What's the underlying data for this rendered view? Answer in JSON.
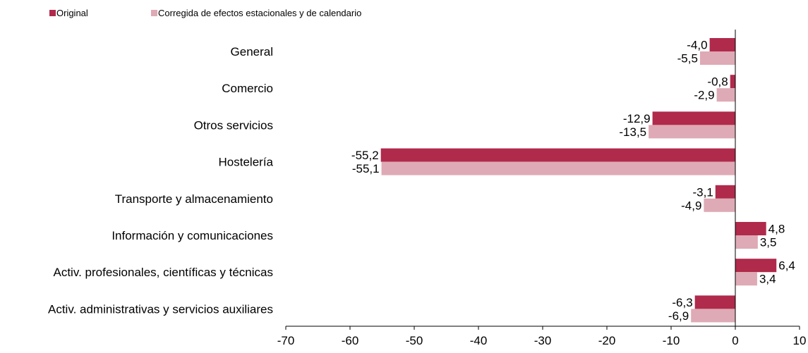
{
  "chart_data": {
    "type": "bar",
    "orientation": "horizontal",
    "categories": [
      "General",
      "Comercio",
      "Otros servicios",
      "Hostelería",
      "Transporte y almacenamiento",
      "Información y comunicaciones",
      "Activ. profesionales, científicas y técnicas",
      "Activ. administrativas y servicios auxiliares"
    ],
    "series": [
      {
        "name": "Original",
        "color": "#b02a4b",
        "values": [
          -4.0,
          -0.8,
          -12.9,
          -55.2,
          -3.1,
          4.8,
          6.4,
          -6.3
        ],
        "labels": [
          "-4,0",
          "-0,8",
          "-12,9",
          "-55,2",
          "-3,1",
          "4,8",
          "6,4",
          "-6,3"
        ]
      },
      {
        "name": "Corregida de efectos estacionales y de calendario",
        "color": "#deaab5",
        "values": [
          -5.5,
          -2.9,
          -13.5,
          -55.1,
          -4.9,
          3.5,
          3.4,
          -6.9
        ],
        "labels": [
          "-5,5",
          "-2,9",
          "-13,5",
          "-55,1",
          "-4,9",
          "3,5",
          "3,4",
          "-6,9"
        ]
      }
    ],
    "xlim": [
      -70,
      10
    ],
    "xticks": [
      -70,
      -60,
      -50,
      -40,
      -30,
      -20,
      -10,
      0,
      10
    ],
    "xtick_labels": [
      "-70",
      "-60",
      "-50",
      "-40",
      "-30",
      "-20",
      "-10",
      "0",
      "10"
    ],
    "grid": false,
    "legend_position": "top-left"
  }
}
